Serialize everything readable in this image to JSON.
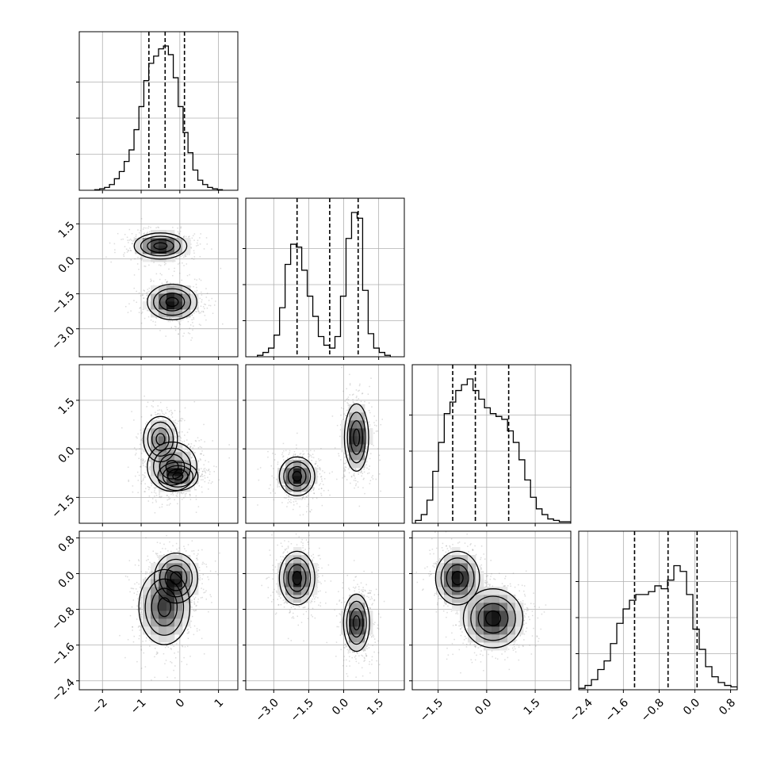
{
  "chart_data": {
    "type": "corner",
    "title": "",
    "parameters": [
      "",
      "",
      "",
      ""
    ],
    "grid": true,
    "colors": {
      "line": "#000000",
      "grid": "#b0b0b0",
      "hist2d_max": "#000000",
      "scatter": "#808080"
    },
    "ranges": [
      [
        -2.6,
        1.5
      ],
      [
        -4.2,
        2.6
      ],
      [
        -2.3,
        2.6
      ],
      [
        -2.6,
        0.95
      ]
    ],
    "ticks": [
      [
        -2,
        -1,
        0,
        1
      ],
      [
        -3.0,
        -1.5,
        0.0,
        1.5
      ],
      [
        -1.5,
        0.0,
        1.5
      ],
      [
        -2.4,
        -1.6,
        -0.8,
        0.0,
        0.8
      ]
    ],
    "tick_labels": [
      [
        "−2",
        "−1",
        "0",
        "1"
      ],
      [
        "−3.0",
        "−1.5",
        "0.0",
        "1.5"
      ],
      [
        "−1.5",
        "0.0",
        "1.5"
      ],
      [
        "−2.4",
        "−1.6",
        "−0.8",
        "0.0",
        "0.8"
      ]
    ],
    "quantiles": [
      [
        -0.8,
        -0.38,
        0.12
      ],
      [
        -2.0,
        -0.6,
        0.62
      ],
      [
        -1.05,
        -0.35,
        0.68
      ],
      [
        -1.35,
        -0.6,
        0.05
      ]
    ],
    "marginals": [
      {
        "parameter": 0,
        "bin_edges": [
          -2.2,
          1.1
        ],
        "counts": [
          0.004,
          0.01,
          0.02,
          0.04,
          0.08,
          0.13,
          0.2,
          0.28,
          0.42,
          0.58,
          0.76,
          0.88,
          0.93,
          0.98,
          1.0,
          0.94,
          0.78,
          0.58,
          0.4,
          0.26,
          0.14,
          0.07,
          0.04,
          0.02,
          0.01,
          0.004
        ]
      },
      {
        "parameter": 1,
        "bin_edges": [
          -3.7,
          2.0
        ],
        "counts": [
          0.01,
          0.03,
          0.06,
          0.15,
          0.34,
          0.64,
          0.78,
          0.76,
          0.6,
          0.42,
          0.28,
          0.14,
          0.08,
          0.06,
          0.14,
          0.42,
          0.82,
          1.0,
          0.96,
          0.46,
          0.16,
          0.06,
          0.03,
          0.01
        ]
      },
      {
        "parameter": 2,
        "bin_edges": [
          -2.2,
          2.6
        ],
        "counts": [
          0.02,
          0.06,
          0.16,
          0.36,
          0.56,
          0.76,
          0.84,
          0.92,
          0.96,
          1.0,
          0.92,
          0.86,
          0.8,
          0.76,
          0.74,
          0.72,
          0.64,
          0.56,
          0.44,
          0.3,
          0.18,
          0.1,
          0.06,
          0.03,
          0.02,
          0.01,
          0.01
        ]
      },
      {
        "parameter": 3,
        "bin_edges": [
          -2.6,
          0.95
        ],
        "counts": [
          0.01,
          0.03,
          0.07,
          0.14,
          0.2,
          0.32,
          0.46,
          0.56,
          0.62,
          0.66,
          0.66,
          0.68,
          0.72,
          0.7,
          0.76,
          0.86,
          0.82,
          0.66,
          0.42,
          0.28,
          0.16,
          0.09,
          0.05,
          0.03,
          0.02
        ]
      }
    ],
    "modes_2d": [
      {
        "x_param": 0,
        "y_param": 1,
        "modes": [
          [
            -0.5,
            0.55,
            0.34,
            0.28
          ],
          [
            -0.2,
            -1.85,
            0.32,
            0.38
          ]
        ]
      },
      {
        "x_param": 0,
        "y_param": 2,
        "modes": [
          [
            -0.5,
            0.3,
            0.22,
            0.35
          ],
          [
            -0.2,
            -0.55,
            0.32,
            0.38
          ],
          [
            -0.05,
            -0.85,
            0.26,
            0.22
          ]
        ]
      },
      {
        "x_param": 1,
        "y_param": 2,
        "modes": [
          [
            -2.0,
            -0.85,
            0.38,
            0.3
          ],
          [
            0.55,
            0.35,
            0.26,
            0.52
          ]
        ]
      },
      {
        "x_param": 0,
        "y_param": 3,
        "modes": [
          [
            -0.4,
            -0.75,
            0.33,
            0.42
          ],
          [
            -0.1,
            -0.1,
            0.28,
            0.28
          ]
        ]
      },
      {
        "x_param": 1,
        "y_param": 3,
        "modes": [
          [
            -2.0,
            -0.1,
            0.38,
            0.3
          ],
          [
            0.55,
            -1.1,
            0.28,
            0.32
          ]
        ]
      },
      {
        "x_param": 2,
        "y_param": 3,
        "modes": [
          [
            -0.9,
            -0.1,
            0.34,
            0.3
          ],
          [
            0.2,
            -1.0,
            0.46,
            0.33
          ]
        ]
      }
    ]
  }
}
